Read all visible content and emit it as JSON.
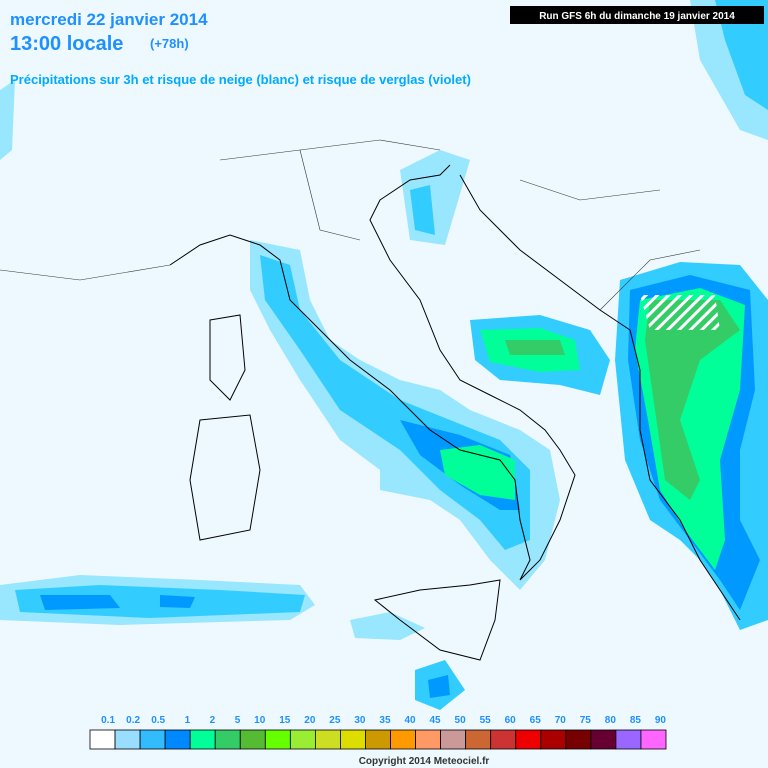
{
  "header": {
    "date": "mercredi 22 janvier 2014",
    "time": "13:00 locale",
    "lead": "(+78h)",
    "subtitle": "Précipitations sur 3h et risque de neige (blanc) et risque de verglas (violet)",
    "run": "Run GFS 6h du dimanche 19 janvier 2014"
  },
  "legend": {
    "labels": [
      "0.1",
      "0.2",
      "0.5",
      "1",
      "2",
      "5",
      "10",
      "15",
      "20",
      "25",
      "30",
      "35",
      "40",
      "45",
      "50",
      "55",
      "60",
      "65",
      "70",
      "75",
      "80",
      "85",
      "90"
    ],
    "colors": [
      "#ffffff",
      "#99ddff",
      "#33bbff",
      "#0088ff",
      "#00ff99",
      "#33cc66",
      "#55bb33",
      "#66ff00",
      "#99ee33",
      "#ccdd22",
      "#dddd00",
      "#cc9900",
      "#ff9900",
      "#ff9966",
      "#cc9999",
      "#cc6633",
      "#cc3333",
      "#ee0000",
      "#aa0000",
      "#770000",
      "#660033",
      "#9966ff",
      "#ff66ff"
    ]
  },
  "footer": {
    "copyright": "Copyright 2014 Meteociel.fr"
  }
}
